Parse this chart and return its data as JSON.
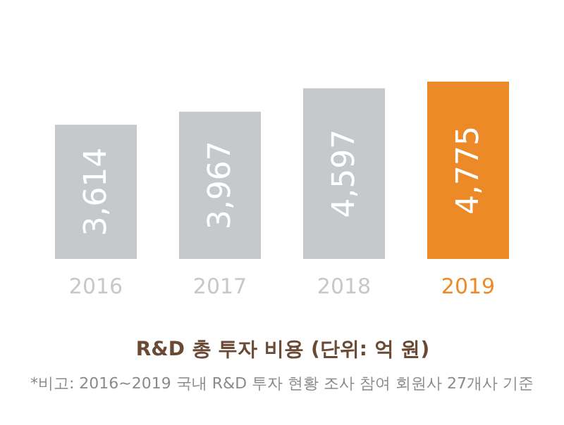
{
  "chart_data": {
    "type": "bar",
    "categories": [
      "2016",
      "2017",
      "2018",
      "2019"
    ],
    "values": [
      3614,
      3967,
      4597,
      4775
    ],
    "colors": [
      "#c5c9cc",
      "#c5c9cc",
      "#c5c9cc",
      "#ec8a28"
    ],
    "value_labels": [
      "3,614",
      "3,967",
      "4,597",
      "4,775"
    ],
    "xlabel": "R&D 총 투자 비용 (단위: 억 원)",
    "annotations": [
      "*비고: 2016~2019 국내 R&D 투자 현황 조사 참여 회원사 27개사 기준"
    ]
  }
}
